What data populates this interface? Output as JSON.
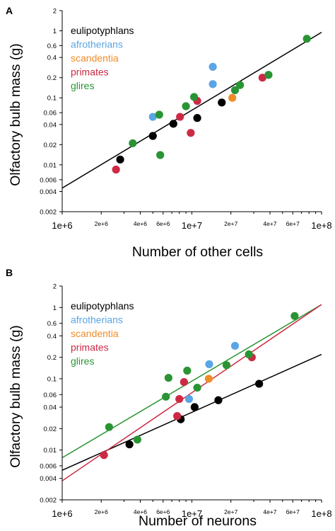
{
  "chart_data": [
    {
      "panel_label": "A",
      "type": "scatter",
      "x_scale": "log",
      "y_scale": "log",
      "xlabel": "Number of other cells",
      "ylabel": "Olfactory bulb mass (g)",
      "xlim": [
        1000000,
        100000000
      ],
      "ylim": [
        0.002,
        2
      ],
      "x_ticks": [
        {
          "v": 1000000,
          "label": "1e+6",
          "major": true
        },
        {
          "v": 2000000,
          "label": "2e+6",
          "major": false
        },
        {
          "v": 4000000,
          "label": "4e+6",
          "major": false
        },
        {
          "v": 6000000,
          "label": "6e+6",
          "major": false
        },
        {
          "v": 10000000,
          "label": "1e+7",
          "major": true
        },
        {
          "v": 20000000,
          "label": "2e+7",
          "major": false
        },
        {
          "v": 40000000,
          "label": "4e+7",
          "major": false
        },
        {
          "v": 60000000,
          "label": "6e+7",
          "major": false
        },
        {
          "v": 100000000,
          "label": "1e+8",
          "major": true
        }
      ],
      "y_ticks": [
        {
          "v": 0.002,
          "label": "0.002"
        },
        {
          "v": 0.004,
          "label": "0.004"
        },
        {
          "v": 0.006,
          "label": "0.006"
        },
        {
          "v": 0.01,
          "label": "0.01"
        },
        {
          "v": 0.02,
          "label": "0.02"
        },
        {
          "v": 0.04,
          "label": "0.04"
        },
        {
          "v": 0.06,
          "label": "0.06"
        },
        {
          "v": 0.1,
          "label": "0.1"
        },
        {
          "v": 0.2,
          "label": "0.2"
        },
        {
          "v": 0.4,
          "label": "0.4"
        },
        {
          "v": 0.6,
          "label": "0.6"
        },
        {
          "v": 1,
          "label": "1"
        },
        {
          "v": 2,
          "label": "2"
        }
      ],
      "legend_position": "top-left",
      "series": [
        {
          "name": "eulipotyphlans",
          "color": "#000000",
          "points": [
            [
              2800000,
              0.012
            ],
            [
              5000000,
              0.027
            ],
            [
              7200000,
              0.041
            ],
            [
              11000000,
              0.05
            ],
            [
              17000000,
              0.085
            ]
          ]
        },
        {
          "name": "afrotherians",
          "color": "#5aa5e6",
          "points": [
            [
              5000000,
              0.052
            ],
            [
              14500000,
              0.29
            ],
            [
              14500000,
              0.16
            ]
          ]
        },
        {
          "name": "scandentia",
          "color": "#f08c28",
          "points": [
            [
              20500000,
              0.1
            ]
          ]
        },
        {
          "name": "primates",
          "color": "#cc2a44",
          "points": [
            [
              2600000,
              0.0085
            ],
            [
              8100000,
              0.052
            ],
            [
              9800000,
              0.03
            ],
            [
              11000000,
              0.09
            ],
            [
              35000000,
              0.2
            ]
          ]
        },
        {
          "name": "glires",
          "color": "#2a9434",
          "points": [
            [
              3500000,
              0.021
            ],
            [
              5600000,
              0.056
            ],
            [
              5700000,
              0.014
            ],
            [
              9000000,
              0.075
            ],
            [
              10400000,
              0.103
            ],
            [
              21500000,
              0.13
            ],
            [
              23500000,
              0.155
            ],
            [
              39000000,
              0.22
            ],
            [
              77000000,
              0.76
            ]
          ]
        }
      ],
      "fit_lines": [
        {
          "color": "#000000",
          "from": [
            1000000,
            0.0045
          ],
          "to": [
            100000000,
            0.95
          ]
        }
      ]
    },
    {
      "panel_label": "B",
      "type": "scatter",
      "x_scale": "log",
      "y_scale": "log",
      "xlabel": "Number of neurons",
      "ylabel": "Olfactory bulb mass (g)",
      "xlim": [
        1000000,
        100000000
      ],
      "ylim": [
        0.002,
        2
      ],
      "x_ticks": [
        {
          "v": 1000000,
          "label": "1e+6",
          "major": true
        },
        {
          "v": 2000000,
          "label": "2e+6",
          "major": false
        },
        {
          "v": 4000000,
          "label": "4e+6",
          "major": false
        },
        {
          "v": 6000000,
          "label": "6e+6",
          "major": false
        },
        {
          "v": 10000000,
          "label": "1e+7",
          "major": true
        },
        {
          "v": 20000000,
          "label": "2e+7",
          "major": false
        },
        {
          "v": 40000000,
          "label": "4e+7",
          "major": false
        },
        {
          "v": 60000000,
          "label": "6e+7",
          "major": false
        },
        {
          "v": 100000000,
          "label": "1e+8",
          "major": true
        }
      ],
      "y_ticks": [
        {
          "v": 0.002,
          "label": "0.002"
        },
        {
          "v": 0.004,
          "label": "0.004"
        },
        {
          "v": 0.006,
          "label": "0.006"
        },
        {
          "v": 0.01,
          "label": "0.01"
        },
        {
          "v": 0.02,
          "label": "0.02"
        },
        {
          "v": 0.04,
          "label": "0.04"
        },
        {
          "v": 0.06,
          "label": "0.06"
        },
        {
          "v": 0.1,
          "label": "0.1"
        },
        {
          "v": 0.2,
          "label": "0.2"
        },
        {
          "v": 0.4,
          "label": "0.4"
        },
        {
          "v": 0.6,
          "label": "0.6"
        },
        {
          "v": 1,
          "label": "1"
        },
        {
          "v": 2,
          "label": "2"
        }
      ],
      "legend_position": "top-left",
      "series": [
        {
          "name": "eulipotyphlans",
          "color": "#000000",
          "points": [
            [
              3300000,
              0.012
            ],
            [
              8200000,
              0.027
            ],
            [
              10500000,
              0.04
            ],
            [
              16000000,
              0.05
            ],
            [
              33000000,
              0.085
            ]
          ]
        },
        {
          "name": "afrotherians",
          "color": "#5aa5e6",
          "points": [
            [
              9500000,
              0.052
            ],
            [
              13600000,
              0.16
            ],
            [
              21500000,
              0.29
            ]
          ]
        },
        {
          "name": "scandentia",
          "color": "#f08c28",
          "points": [
            [
              13500000,
              0.1
            ]
          ]
        },
        {
          "name": "primates",
          "color": "#cc2a44",
          "points": [
            [
              2100000,
              0.0085
            ],
            [
              7700000,
              0.03
            ],
            [
              8000000,
              0.052
            ],
            [
              8700000,
              0.09
            ],
            [
              29000000,
              0.2
            ]
          ]
        },
        {
          "name": "glires",
          "color": "#2a9434",
          "points": [
            [
              2300000,
              0.021
            ],
            [
              3800000,
              0.014
            ],
            [
              6300000,
              0.056
            ],
            [
              6600000,
              0.103
            ],
            [
              9200000,
              0.13
            ],
            [
              11000000,
              0.075
            ],
            [
              18500000,
              0.155
            ],
            [
              27500000,
              0.22
            ],
            [
              62000000,
              0.76
            ]
          ]
        }
      ],
      "fit_lines": [
        {
          "color": "#000000",
          "from": [
            1000000,
            0.0052
          ],
          "to": [
            100000000,
            0.22
          ]
        },
        {
          "color": "#2a9434",
          "from": [
            1000000,
            0.0078
          ],
          "to": [
            100000000,
            1.1
          ]
        },
        {
          "color": "#cc2a44",
          "from": [
            1000000,
            0.0037
          ],
          "to": [
            100000000,
            1.1
          ]
        }
      ]
    }
  ]
}
